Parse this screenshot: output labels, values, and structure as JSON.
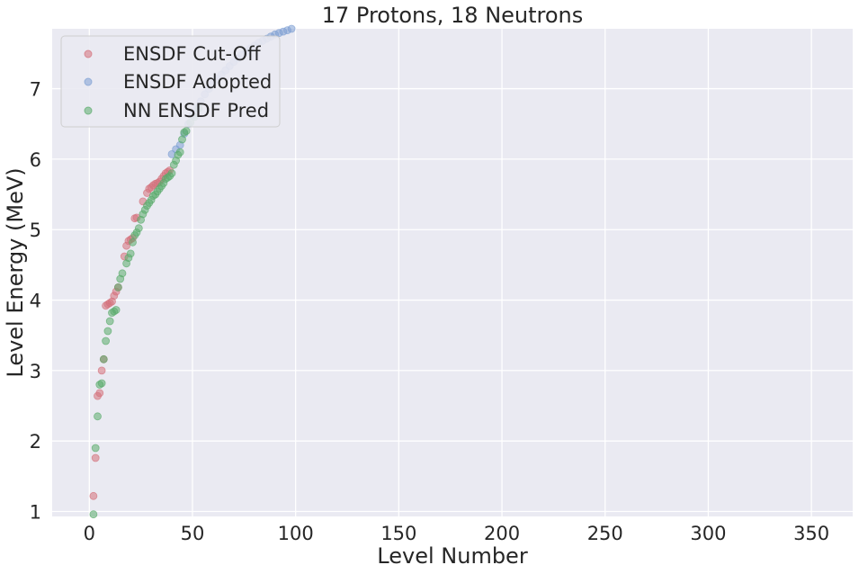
{
  "chart_data": {
    "type": "scatter",
    "title": "17 Protons, 18 Neutrons",
    "xlabel": "Level Number",
    "ylabel": "Level Energy (MeV)",
    "xlim": [
      -18,
      370
    ],
    "ylim": [
      0.93,
      7.85
    ],
    "xticks": [
      0,
      50,
      100,
      150,
      200,
      250,
      300,
      350
    ],
    "yticks": [
      1,
      2,
      3,
      4,
      5,
      6,
      7
    ],
    "grid": true,
    "legend": "top-left",
    "series": [
      {
        "name": "ENSDF Cut-Off",
        "color": "#d4707a",
        "points": [
          [
            2,
            1.22
          ],
          [
            3,
            1.76
          ],
          [
            4,
            2.64
          ],
          [
            5,
            2.68
          ],
          [
            6,
            3.0
          ],
          [
            7,
            3.16
          ],
          [
            8,
            3.92
          ],
          [
            9,
            3.94
          ],
          [
            10,
            3.96
          ],
          [
            11,
            3.98
          ],
          [
            12,
            4.06
          ],
          [
            13,
            4.12
          ],
          [
            14,
            4.18
          ],
          [
            17,
            4.62
          ],
          [
            18,
            4.77
          ],
          [
            19,
            4.84
          ],
          [
            20,
            4.86
          ],
          [
            21,
            4.88
          ],
          [
            22,
            5.16
          ],
          [
            23,
            5.17
          ],
          [
            26,
            5.4
          ],
          [
            28,
            5.52
          ],
          [
            29,
            5.58
          ],
          [
            30,
            5.6
          ],
          [
            31,
            5.63
          ],
          [
            32,
            5.65
          ],
          [
            33,
            5.66
          ],
          [
            34,
            5.68
          ],
          [
            35,
            5.72
          ],
          [
            36,
            5.76
          ],
          [
            37,
            5.8
          ],
          [
            38,
            5.82
          ],
          [
            39,
            5.84
          ]
        ]
      },
      {
        "name": "ENSDF Adopted",
        "color": "#7d9fd3",
        "points": [
          [
            40,
            6.07
          ],
          [
            42,
            6.14
          ],
          [
            44,
            6.2
          ],
          [
            46,
            6.36
          ],
          [
            48,
            6.5
          ],
          [
            50,
            6.62
          ],
          [
            52,
            6.72
          ],
          [
            54,
            6.82
          ],
          [
            56,
            6.92
          ],
          [
            58,
            7.0
          ],
          [
            60,
            7.08
          ],
          [
            62,
            7.14
          ],
          [
            64,
            7.2
          ],
          [
            66,
            7.26
          ],
          [
            68,
            7.32
          ],
          [
            70,
            7.38
          ],
          [
            72,
            7.43
          ],
          [
            74,
            7.48
          ],
          [
            76,
            7.53
          ],
          [
            78,
            7.57
          ],
          [
            80,
            7.61
          ],
          [
            82,
            7.65
          ],
          [
            84,
            7.68
          ],
          [
            86,
            7.71
          ],
          [
            88,
            7.74
          ],
          [
            90,
            7.77
          ],
          [
            92,
            7.79
          ],
          [
            94,
            7.81
          ],
          [
            96,
            7.83
          ],
          [
            98,
            7.85
          ]
        ]
      },
      {
        "name": "NN ENSDF Pred",
        "color": "#5aab6b",
        "points": [
          [
            2,
            0.96
          ],
          [
            3,
            1.9
          ],
          [
            4,
            2.35
          ],
          [
            5,
            2.8
          ],
          [
            6,
            2.82
          ],
          [
            7,
            3.16
          ],
          [
            8,
            3.42
          ],
          [
            9,
            3.56
          ],
          [
            10,
            3.7
          ],
          [
            11,
            3.82
          ],
          [
            12,
            3.84
          ],
          [
            13,
            3.86
          ],
          [
            14,
            4.18
          ],
          [
            15,
            4.3
          ],
          [
            16,
            4.38
          ],
          [
            18,
            4.52
          ],
          [
            19,
            4.6
          ],
          [
            20,
            4.66
          ],
          [
            21,
            4.82
          ],
          [
            22,
            4.92
          ],
          [
            23,
            4.96
          ],
          [
            24,
            5.02
          ],
          [
            25,
            5.14
          ],
          [
            26,
            5.22
          ],
          [
            27,
            5.28
          ],
          [
            28,
            5.34
          ],
          [
            29,
            5.38
          ],
          [
            30,
            5.42
          ],
          [
            31,
            5.48
          ],
          [
            32,
            5.5
          ],
          [
            33,
            5.54
          ],
          [
            34,
            5.58
          ],
          [
            35,
            5.62
          ],
          [
            36,
            5.66
          ],
          [
            37,
            5.72
          ],
          [
            38,
            5.74
          ],
          [
            39,
            5.76
          ],
          [
            40,
            5.8
          ],
          [
            41,
            5.92
          ],
          [
            42,
            5.98
          ],
          [
            43,
            6.06
          ],
          [
            44,
            6.1
          ],
          [
            45,
            6.28
          ],
          [
            46,
            6.38
          ],
          [
            47,
            6.4
          ],
          [
            49,
            6.52
          ],
          [
            51,
            6.6
          ],
          [
            53,
            6.72
          ]
        ]
      }
    ]
  }
}
